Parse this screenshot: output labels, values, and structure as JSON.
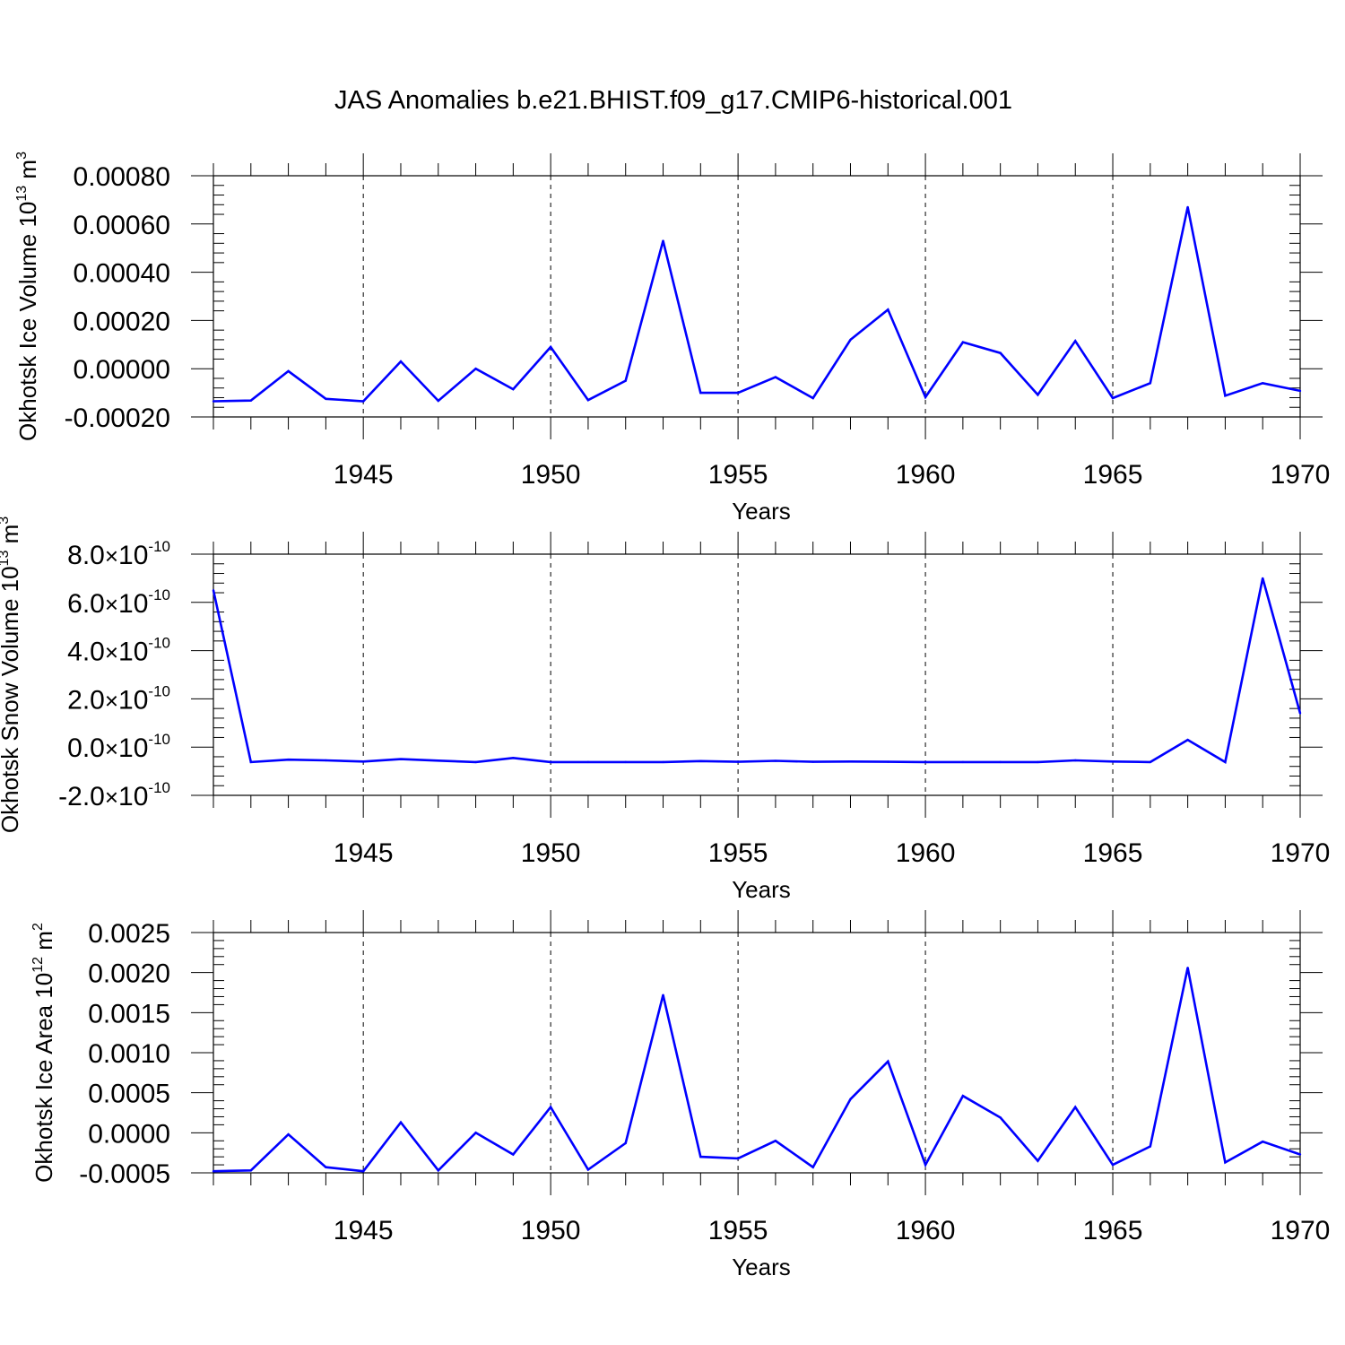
{
  "title": "JAS Anomalies b.e21.BHIST.f09_g17.CMIP6-historical.001",
  "chart_data": [
    {
      "type": "line",
      "ylabel": {
        "main": "Okhotsk Ice Volume 10",
        "sup": "13",
        "unit": " m",
        "unit_sup": "3"
      },
      "xlabel": "Years",
      "xlim": [
        1941,
        1970
      ],
      "ylim": [
        -0.0002,
        0.0008
      ],
      "xticks": [
        1945,
        1950,
        1955,
        1960,
        1965,
        1970
      ],
      "xtick_labels": [
        "1945",
        "1950",
        "1955",
        "1960",
        "1965",
        "1970"
      ],
      "yticks": [
        -0.0002,
        0.0,
        0.0002,
        0.0004,
        0.0006,
        0.0008
      ],
      "ytick_labels": [
        "-0.00020",
        "0.00000",
        "0.00020",
        "0.00040",
        "0.00060",
        "0.00080"
      ],
      "color": "#0000ff",
      "series": [
        {
          "name": "Okhotsk Ice Volume",
          "x": [
            1941,
            1942,
            1943,
            1944,
            1945,
            1946,
            1947,
            1948,
            1949,
            1950,
            1951,
            1952,
            1953,
            1954,
            1955,
            1956,
            1957,
            1958,
            1959,
            1960,
            1961,
            1962,
            1963,
            1964,
            1965,
            1966,
            1967,
            1968,
            1969,
            1970
          ],
          "values": [
            -0.000135,
            -0.000132,
            -1e-05,
            -0.000125,
            -0.000135,
            3e-05,
            -0.000133,
            0.0,
            -8.5e-05,
            9e-05,
            -0.00013,
            -5e-05,
            0.00053,
            -0.0001,
            -0.0001,
            -3.5e-05,
            -0.000122,
            0.00012,
            0.000245,
            -0.000118,
            0.00011,
            6.5e-05,
            -0.000108,
            0.000115,
            -0.000122,
            -6e-05,
            0.00067,
            -0.000112,
            -6e-05,
            -9.2e-05
          ]
        }
      ]
    },
    {
      "type": "line",
      "ylabel": {
        "main": "Okhotsk Snow Volume 10",
        "sup": "13",
        "unit": " m",
        "unit_sup": "3"
      },
      "xlabel": "Years",
      "xlim": [
        1941,
        1970
      ],
      "ylim": [
        -2e-10,
        8e-10
      ],
      "xticks": [
        1945,
        1950,
        1955,
        1960,
        1965,
        1970
      ],
      "xtick_labels": [
        "1945",
        "1950",
        "1955",
        "1960",
        "1965",
        "1970"
      ],
      "yticks": [
        -2e-10,
        0.0,
        2e-10,
        4e-10,
        6e-10,
        8e-10
      ],
      "ytick_labels": [
        {
          "mant": "-2.0",
          "times": "×",
          "base": "10",
          "exp": "-10"
        },
        {
          "mant": "0.0",
          "times": "×",
          "base": "10",
          "exp": "-10"
        },
        {
          "mant": "2.0",
          "times": "×",
          "base": "10",
          "exp": "-10"
        },
        {
          "mant": "4.0",
          "times": "×",
          "base": "10",
          "exp": "-10"
        },
        {
          "mant": "6.0",
          "times": "×",
          "base": "10",
          "exp": "-10"
        },
        {
          "mant": "8.0",
          "times": "×",
          "base": "10",
          "exp": "-10"
        }
      ],
      "color": "#0000ff",
      "series": [
        {
          "name": "Okhotsk Snow Volume",
          "x": [
            1941,
            1942,
            1943,
            1944,
            1945,
            1946,
            1947,
            1948,
            1949,
            1950,
            1951,
            1952,
            1953,
            1954,
            1955,
            1956,
            1957,
            1958,
            1959,
            1960,
            1961,
            1962,
            1963,
            1964,
            1965,
            1966,
            1967,
            1968,
            1969,
            1970
          ],
          "values": [
            6.5e-10,
            -6.2e-11,
            -5.2e-11,
            -5.5e-11,
            -6e-11,
            -5e-11,
            -5.6e-11,
            -6.2e-11,
            -4.5e-11,
            -6.2e-11,
            -6.2e-11,
            -6.2e-11,
            -6.2e-11,
            -5.8e-11,
            -6.1e-11,
            -5.7e-11,
            -6.1e-11,
            -6e-11,
            -6.1e-11,
            -6.2e-11,
            -6.2e-11,
            -6.2e-11,
            -6.2e-11,
            -5.5e-11,
            -6e-11,
            -6.2e-11,
            3e-11,
            -6.2e-11,
            7e-10,
            1.4e-10
          ]
        }
      ]
    },
    {
      "type": "line",
      "ylabel": {
        "main": "Okhotsk Ice Area 10",
        "sup": "12",
        "unit": " m",
        "unit_sup": "2"
      },
      "xlabel": "Years",
      "xlim": [
        1941,
        1970
      ],
      "ylim": [
        -0.0005,
        0.0025
      ],
      "xticks": [
        1945,
        1950,
        1955,
        1960,
        1965,
        1970
      ],
      "xtick_labels": [
        "1945",
        "1950",
        "1955",
        "1960",
        "1965",
        "1970"
      ],
      "yticks": [
        -0.0005,
        0.0,
        0.0005,
        0.001,
        0.0015,
        0.002,
        0.0025
      ],
      "ytick_labels": [
        "-0.0005",
        "0.0000",
        "0.0005",
        "0.0010",
        "0.0015",
        "0.0020",
        "0.0025"
      ],
      "color": "#0000ff",
      "series": [
        {
          "name": "Okhotsk Ice Area",
          "x": [
            1941,
            1942,
            1943,
            1944,
            1945,
            1946,
            1947,
            1948,
            1949,
            1950,
            1951,
            1952,
            1953,
            1954,
            1955,
            1956,
            1957,
            1958,
            1959,
            1960,
            1961,
            1962,
            1963,
            1964,
            1965,
            1966,
            1967,
            1968,
            1969,
            1970
          ],
          "values": [
            -0.00048,
            -0.00047,
            -2e-05,
            -0.00043,
            -0.00048,
            0.00013,
            -0.00047,
            0.0,
            -0.00027,
            0.00032,
            -0.00046,
            -0.00013,
            0.00172,
            -0.0003,
            -0.00032,
            -0.0001,
            -0.00043,
            0.00042,
            0.00089,
            -0.0004,
            0.00046,
            0.00019,
            -0.00035,
            0.00032,
            -0.0004,
            -0.00017,
            0.00206,
            -0.00037,
            -0.00011,
            -0.00027
          ]
        }
      ]
    }
  ]
}
